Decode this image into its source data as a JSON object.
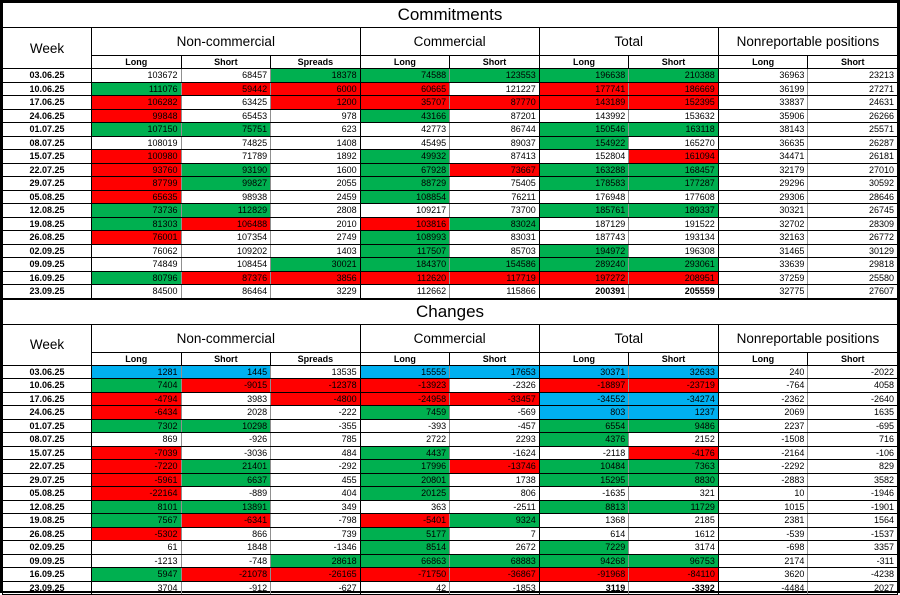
{
  "color_map": {
    "w": "#FFFFFF",
    "g": "#00B050",
    "r": "#FF0000",
    "b": "#00B0F0"
  },
  "columns": {
    "week_label": "Week",
    "groups": [
      {
        "label": "Non-commercial",
        "cols": [
          "Long",
          "Short",
          "Spreads"
        ]
      },
      {
        "label": "Commercial",
        "cols": [
          "Long",
          "Short"
        ]
      },
      {
        "label": "Total",
        "cols": [
          "Long",
          "Short"
        ]
      },
      {
        "label": "Nonreportable positions",
        "cols": [
          "Long",
          "Short"
        ]
      }
    ]
  },
  "sections": [
    {
      "title": "Commitments",
      "rows": [
        {
          "week": "03.06.25",
          "values": [
            103672,
            68457,
            18378,
            74588,
            123553,
            196638,
            210388,
            36963,
            23213
          ],
          "colors": [
            "w",
            "w",
            "g",
            "g",
            "g",
            "g",
            "g",
            "w",
            "w"
          ]
        },
        {
          "week": "10.06.25",
          "values": [
            111076,
            59442,
            6000,
            60665,
            121227,
            177741,
            186669,
            36199,
            27271
          ],
          "colors": [
            "g",
            "r",
            "r",
            "r",
            "w",
            "r",
            "r",
            "w",
            "w"
          ]
        },
        {
          "week": "17.06.25",
          "values": [
            106282,
            63425,
            1200,
            35707,
            87770,
            143189,
            152395,
            33837,
            24631
          ],
          "colors": [
            "r",
            "w",
            "r",
            "r",
            "r",
            "r",
            "r",
            "w",
            "w"
          ]
        },
        {
          "week": "24.06.25",
          "values": [
            99848,
            65453,
            978,
            43166,
            87201,
            143992,
            153632,
            35906,
            26266
          ],
          "colors": [
            "r",
            "w",
            "w",
            "g",
            "w",
            "w",
            "w",
            "w",
            "w"
          ]
        },
        {
          "week": "01.07.25",
          "values": [
            107150,
            75751,
            623,
            42773,
            86744,
            150546,
            163118,
            38143,
            25571
          ],
          "colors": [
            "g",
            "g",
            "w",
            "w",
            "w",
            "g",
            "g",
            "w",
            "w"
          ]
        },
        {
          "week": "08.07.25",
          "values": [
            108019,
            74825,
            1408,
            45495,
            89037,
            154922,
            165270,
            36635,
            26287
          ],
          "colors": [
            "w",
            "w",
            "w",
            "w",
            "w",
            "g",
            "w",
            "w",
            "w"
          ]
        },
        {
          "week": "15.07.25",
          "values": [
            100980,
            71789,
            1892,
            49932,
            87413,
            152804,
            161094,
            34471,
            26181
          ],
          "colors": [
            "r",
            "w",
            "w",
            "g",
            "w",
            "w",
            "r",
            "w",
            "w"
          ]
        },
        {
          "week": "22.07.25",
          "values": [
            93760,
            93190,
            1600,
            67928,
            73667,
            163288,
            168457,
            32179,
            27010
          ],
          "colors": [
            "r",
            "g",
            "w",
            "g",
            "r",
            "g",
            "g",
            "w",
            "w"
          ]
        },
        {
          "week": "29.07.25",
          "values": [
            87799,
            99827,
            2055,
            88729,
            75405,
            178583,
            177287,
            29296,
            30592
          ],
          "colors": [
            "r",
            "g",
            "w",
            "g",
            "w",
            "g",
            "g",
            "w",
            "w"
          ]
        },
        {
          "week": "05.08.25",
          "values": [
            65635,
            98938,
            2459,
            108854,
            76211,
            176948,
            177608,
            29306,
            28646
          ],
          "colors": [
            "r",
            "w",
            "w",
            "g",
            "w",
            "w",
            "w",
            "w",
            "w"
          ]
        },
        {
          "week": "12.08.25",
          "values": [
            73736,
            112829,
            2808,
            109217,
            73700,
            185761,
            189337,
            30321,
            26745
          ],
          "colors": [
            "g",
            "g",
            "w",
            "w",
            "w",
            "g",
            "g",
            "w",
            "w"
          ]
        },
        {
          "week": "19.08.25",
          "values": [
            81303,
            106488,
            2010,
            103816,
            83024,
            187129,
            191522,
            32702,
            28309
          ],
          "colors": [
            "g",
            "r",
            "w",
            "r",
            "g",
            "w",
            "w",
            "w",
            "w"
          ]
        },
        {
          "week": "26.08.25",
          "values": [
            76001,
            107354,
            2749,
            108993,
            83031,
            187743,
            193134,
            32163,
            26772
          ],
          "colors": [
            "r",
            "w",
            "w",
            "g",
            "w",
            "w",
            "w",
            "w",
            "w"
          ]
        },
        {
          "week": "02.09.25",
          "values": [
            76062,
            109202,
            1403,
            117507,
            85703,
            194972,
            196308,
            31465,
            30129
          ],
          "colors": [
            "w",
            "w",
            "w",
            "g",
            "w",
            "g",
            "w",
            "w",
            "w"
          ]
        },
        {
          "week": "09.09.25",
          "values": [
            74849,
            108454,
            30021,
            184370,
            154586,
            289240,
            293061,
            33639,
            29818
          ],
          "colors": [
            "w",
            "w",
            "g",
            "g",
            "g",
            "g",
            "g",
            "w",
            "w"
          ]
        },
        {
          "week": "16.09.25",
          "values": [
            80796,
            87376,
            3856,
            112620,
            117719,
            197272,
            208951,
            37259,
            25580
          ],
          "colors": [
            "g",
            "r",
            "r",
            "r",
            "r",
            "r",
            "r",
            "w",
            "w"
          ]
        },
        {
          "week": "23.09.25",
          "values": [
            84500,
            86464,
            3229,
            112662,
            115866,
            200391,
            205559,
            32775,
            27607
          ],
          "colors": [
            "w",
            "w",
            "w",
            "w",
            "w",
            "w",
            "w",
            "w",
            "w"
          ],
          "bold": [
            5,
            6
          ]
        }
      ]
    },
    {
      "title": "Changes",
      "rows": [
        {
          "week": "03.06.25",
          "values": [
            1281,
            1445,
            13535,
            15555,
            17653,
            30371,
            32633,
            240,
            -2022
          ],
          "colors": [
            "b",
            "b",
            "w",
            "b",
            "b",
            "b",
            "b",
            "w",
            "w"
          ]
        },
        {
          "week": "10.06.25",
          "values": [
            7404,
            -9015,
            -12378,
            -13923,
            -2326,
            -18897,
            -23719,
            -764,
            4058
          ],
          "colors": [
            "g",
            "r",
            "r",
            "r",
            "w",
            "r",
            "r",
            "w",
            "w"
          ]
        },
        {
          "week": "17.06.25",
          "values": [
            -4794,
            3983,
            -4800,
            -24958,
            -33457,
            -34552,
            -34274,
            -2362,
            -2640
          ],
          "colors": [
            "r",
            "w",
            "r",
            "r",
            "r",
            "b",
            "b",
            "w",
            "w"
          ]
        },
        {
          "week": "24.06.25",
          "values": [
            -6434,
            2028,
            -222,
            7459,
            -569,
            803,
            1237,
            2069,
            1635
          ],
          "colors": [
            "r",
            "w",
            "w",
            "g",
            "w",
            "b",
            "b",
            "w",
            "w"
          ]
        },
        {
          "week": "01.07.25",
          "values": [
            7302,
            10298,
            -355,
            -393,
            -457,
            6554,
            9486,
            2237,
            -695
          ],
          "colors": [
            "g",
            "g",
            "w",
            "w",
            "w",
            "g",
            "g",
            "w",
            "w"
          ]
        },
        {
          "week": "08.07.25",
          "values": [
            869,
            -926,
            785,
            2722,
            2293,
            4376,
            2152,
            -1508,
            716
          ],
          "colors": [
            "w",
            "w",
            "w",
            "w",
            "w",
            "g",
            "w",
            "w",
            "w"
          ]
        },
        {
          "week": "15.07.25",
          "values": [
            -7039,
            -3036,
            484,
            4437,
            -1624,
            -2118,
            -4176,
            -2164,
            -106
          ],
          "colors": [
            "r",
            "w",
            "w",
            "g",
            "w",
            "w",
            "r",
            "w",
            "w"
          ]
        },
        {
          "week": "22.07.25",
          "values": [
            -7220,
            21401,
            -292,
            17996,
            -13746,
            10484,
            7363,
            -2292,
            829
          ],
          "colors": [
            "r",
            "g",
            "w",
            "g",
            "r",
            "g",
            "g",
            "w",
            "w"
          ]
        },
        {
          "week": "29.07.25",
          "values": [
            -5961,
            6637,
            455,
            20801,
            1738,
            15295,
            8830,
            -2883,
            3582
          ],
          "colors": [
            "r",
            "g",
            "w",
            "g",
            "w",
            "g",
            "g",
            "w",
            "w"
          ]
        },
        {
          "week": "05.08.25",
          "values": [
            -22164,
            -889,
            404,
            20125,
            806,
            -1635,
            321,
            10,
            -1946
          ],
          "colors": [
            "r",
            "w",
            "w",
            "g",
            "w",
            "w",
            "w",
            "w",
            "w"
          ]
        },
        {
          "week": "12.08.25",
          "values": [
            8101,
            13891,
            349,
            363,
            -2511,
            8813,
            11729,
            1015,
            -1901
          ],
          "colors": [
            "g",
            "g",
            "w",
            "w",
            "w",
            "g",
            "g",
            "w",
            "w"
          ]
        },
        {
          "week": "19.08.25",
          "values": [
            7567,
            -6341,
            -798,
            -5401,
            9324,
            1368,
            2185,
            2381,
            1564
          ],
          "colors": [
            "g",
            "r",
            "w",
            "r",
            "g",
            "w",
            "w",
            "w",
            "w"
          ]
        },
        {
          "week": "26.08.25",
          "values": [
            -5302,
            866,
            739,
            5177,
            7,
            614,
            1612,
            -539,
            -1537
          ],
          "colors": [
            "r",
            "w",
            "w",
            "g",
            "w",
            "w",
            "w",
            "w",
            "w"
          ]
        },
        {
          "week": "02.09.25",
          "values": [
            61,
            1848,
            -1346,
            8514,
            2672,
            7229,
            3174,
            -698,
            3357
          ],
          "colors": [
            "w",
            "w",
            "w",
            "g",
            "w",
            "g",
            "w",
            "w",
            "w"
          ]
        },
        {
          "week": "09.09.25",
          "values": [
            -1213,
            -748,
            28618,
            66863,
            68883,
            94268,
            96753,
            2174,
            -311
          ],
          "colors": [
            "w",
            "w",
            "g",
            "g",
            "g",
            "g",
            "g",
            "w",
            "w"
          ]
        },
        {
          "week": "16.09.25",
          "values": [
            5947,
            -21078,
            -26165,
            -71750,
            -36867,
            -91968,
            -84110,
            3620,
            -4238
          ],
          "colors": [
            "g",
            "r",
            "r",
            "r",
            "r",
            "r",
            "r",
            "w",
            "w"
          ]
        },
        {
          "week": "23.09.25",
          "values": [
            3704,
            -912,
            -627,
            42,
            -1853,
            3119,
            -3392,
            -4484,
            2027
          ],
          "colors": [
            "w",
            "w",
            "w",
            "w",
            "w",
            "w",
            "w",
            "w",
            "w"
          ],
          "bold": [
            5,
            6
          ]
        }
      ]
    }
  ]
}
